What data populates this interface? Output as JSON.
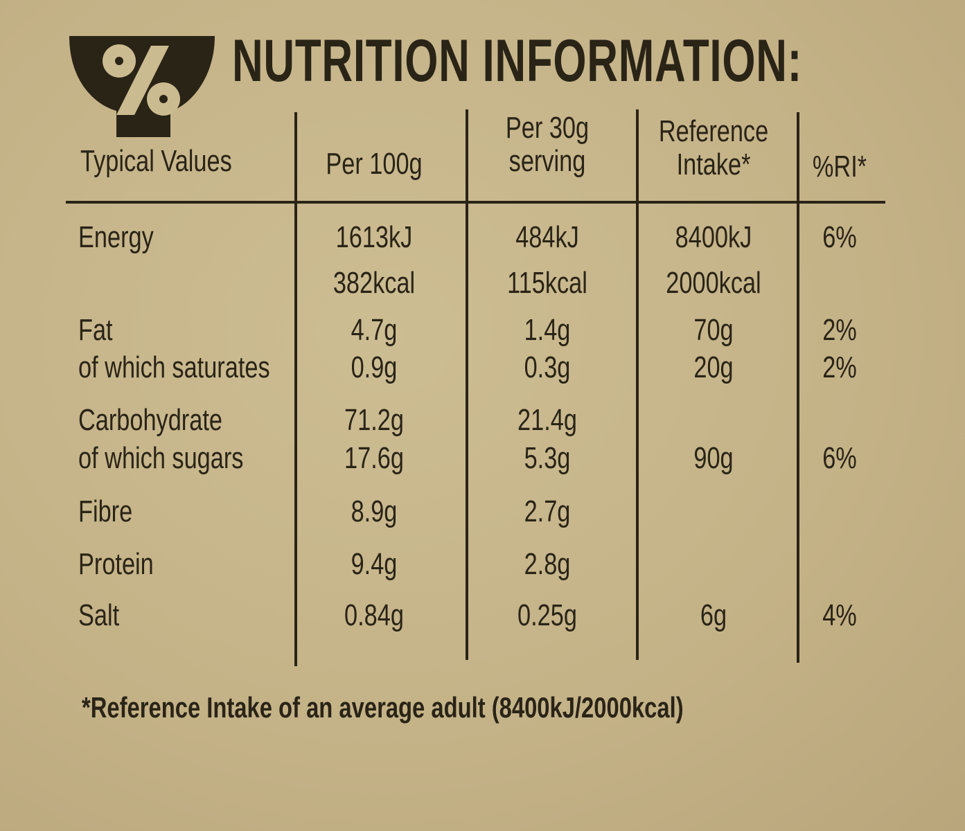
{
  "header": {
    "title": "NUTRITION INFORMATION:",
    "icon": "bowl-percent-icon"
  },
  "table": {
    "columns": [
      "Typical Values",
      "Per 100g",
      "Per 30g serving",
      "Reference Intake*",
      "%RI*"
    ],
    "column_lines": {
      "per30": [
        "Per 30g",
        "serving"
      ],
      "ri": [
        "Reference",
        "Intake*"
      ]
    },
    "rows": [
      {
        "name": "Energy",
        "per100": "1613kJ",
        "per30": "484kJ",
        "ri": "8400kJ",
        "pri": "6%"
      },
      {
        "name": "",
        "per100": "382kcal",
        "per30": "115kcal",
        "ri": "2000kcal",
        "pri": ""
      },
      {
        "name": "Fat",
        "per100": "4.7g",
        "per30": "1.4g",
        "ri": "70g",
        "pri": "2%"
      },
      {
        "name": "of which saturates",
        "per100": "0.9g",
        "per30": "0.3g",
        "ri": "20g",
        "pri": "2%"
      },
      {
        "name": "Carbohydrate",
        "per100": "71.2g",
        "per30": "21.4g",
        "ri": "",
        "pri": ""
      },
      {
        "name": "of which sugars",
        "per100": "17.6g",
        "per30": "5.3g",
        "ri": "90g",
        "pri": "6%"
      },
      {
        "name": "Fibre",
        "per100": "8.9g",
        "per30": "2.7g",
        "ri": "",
        "pri": ""
      },
      {
        "name": "Protein",
        "per100": "9.4g",
        "per30": "2.8g",
        "ri": "",
        "pri": ""
      },
      {
        "name": "Salt",
        "per100": "0.84g",
        "per30": "0.25g",
        "ri": "6g",
        "pri": "4%"
      }
    ]
  },
  "footnote": "*Reference Intake of an average adult (8400kJ/2000kcal)"
}
